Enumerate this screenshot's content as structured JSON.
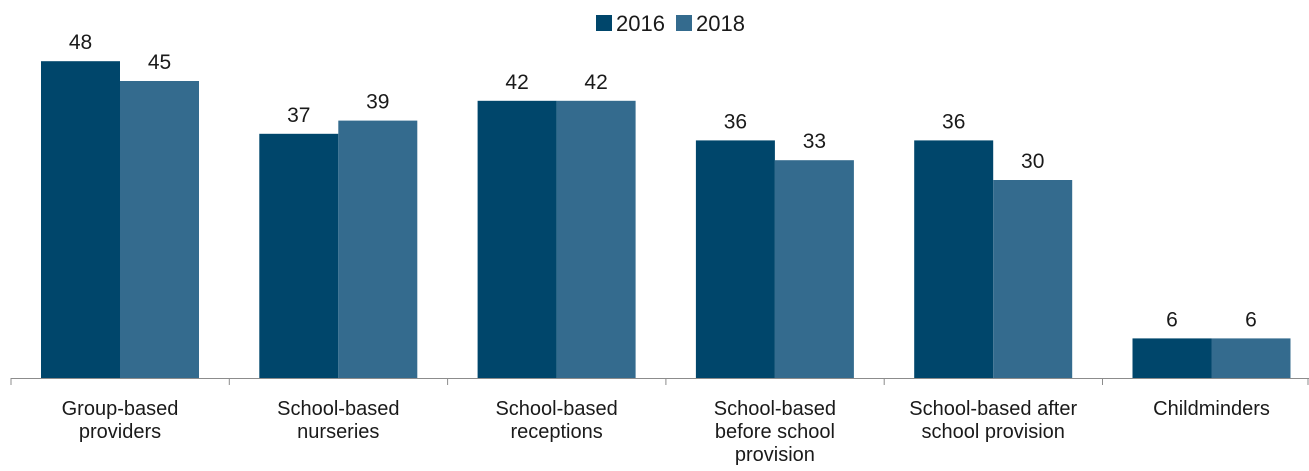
{
  "chart_data": {
    "type": "bar",
    "categories": [
      [
        "Group-based",
        "providers"
      ],
      [
        "School-based",
        "nurseries"
      ],
      [
        "School-based",
        "receptions"
      ],
      [
        "School-based",
        "before school",
        "provision"
      ],
      [
        "School-based after",
        "school provision"
      ],
      [
        "Childminders"
      ]
    ],
    "series": [
      {
        "name": "2016",
        "color": "#00466b",
        "values": [
          48,
          37,
          42,
          36,
          36,
          6
        ]
      },
      {
        "name": "2018",
        "color": "#346b8e",
        "values": [
          45,
          39,
          42,
          33,
          30,
          6
        ]
      }
    ],
    "ylim": [
      0,
      50
    ],
    "grid": false,
    "legend_position": "top-center"
  }
}
